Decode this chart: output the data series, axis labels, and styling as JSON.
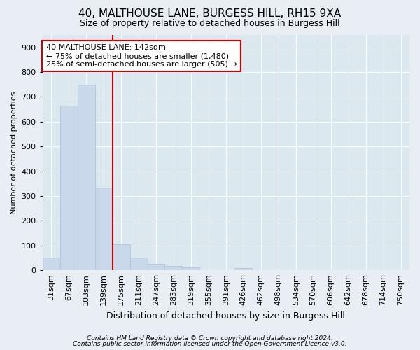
{
  "title1": "40, MALTHOUSE LANE, BURGESS HILL, RH15 9XA",
  "title2": "Size of property relative to detached houses in Burgess Hill",
  "xlabel": "Distribution of detached houses by size in Burgess Hill",
  "ylabel": "Number of detached properties",
  "categories": [
    "31sqm",
    "67sqm",
    "103sqm",
    "139sqm",
    "175sqm",
    "211sqm",
    "247sqm",
    "283sqm",
    "319sqm",
    "355sqm",
    "391sqm",
    "426sqm",
    "462sqm",
    "498sqm",
    "534sqm",
    "570sqm",
    "606sqm",
    "642sqm",
    "678sqm",
    "714sqm",
    "750sqm"
  ],
  "values": [
    50,
    665,
    750,
    335,
    105,
    50,
    25,
    17,
    11,
    0,
    0,
    8,
    0,
    0,
    0,
    0,
    0,
    0,
    0,
    0,
    0
  ],
  "bar_color": "#c8d8ea",
  "bar_edge_color": "#b0c4d8",
  "vline_color": "#cc0000",
  "vline_x_index": 3,
  "annotation_text": "40 MALTHOUSE LANE: 142sqm\n← 75% of detached houses are smaller (1,480)\n25% of semi-detached houses are larger (505) →",
  "annotation_box_facecolor": "#ffffff",
  "annotation_box_edgecolor": "#cc0000",
  "ylim": [
    0,
    950
  ],
  "yticks": [
    0,
    100,
    200,
    300,
    400,
    500,
    600,
    700,
    800,
    900
  ],
  "footnote1": "Contains HM Land Registry data © Crown copyright and database right 2024.",
  "footnote2": "Contains public sector information licensed under the Open Government Licence v3.0.",
  "bg_color": "#e8eef4",
  "plot_bg_color": "#dce8f0",
  "title1_fontsize": 11,
  "title2_fontsize": 9,
  "xlabel_fontsize": 9,
  "ylabel_fontsize": 8,
  "tick_fontsize": 8,
  "annot_fontsize": 8,
  "footnote_fontsize": 6.5
}
